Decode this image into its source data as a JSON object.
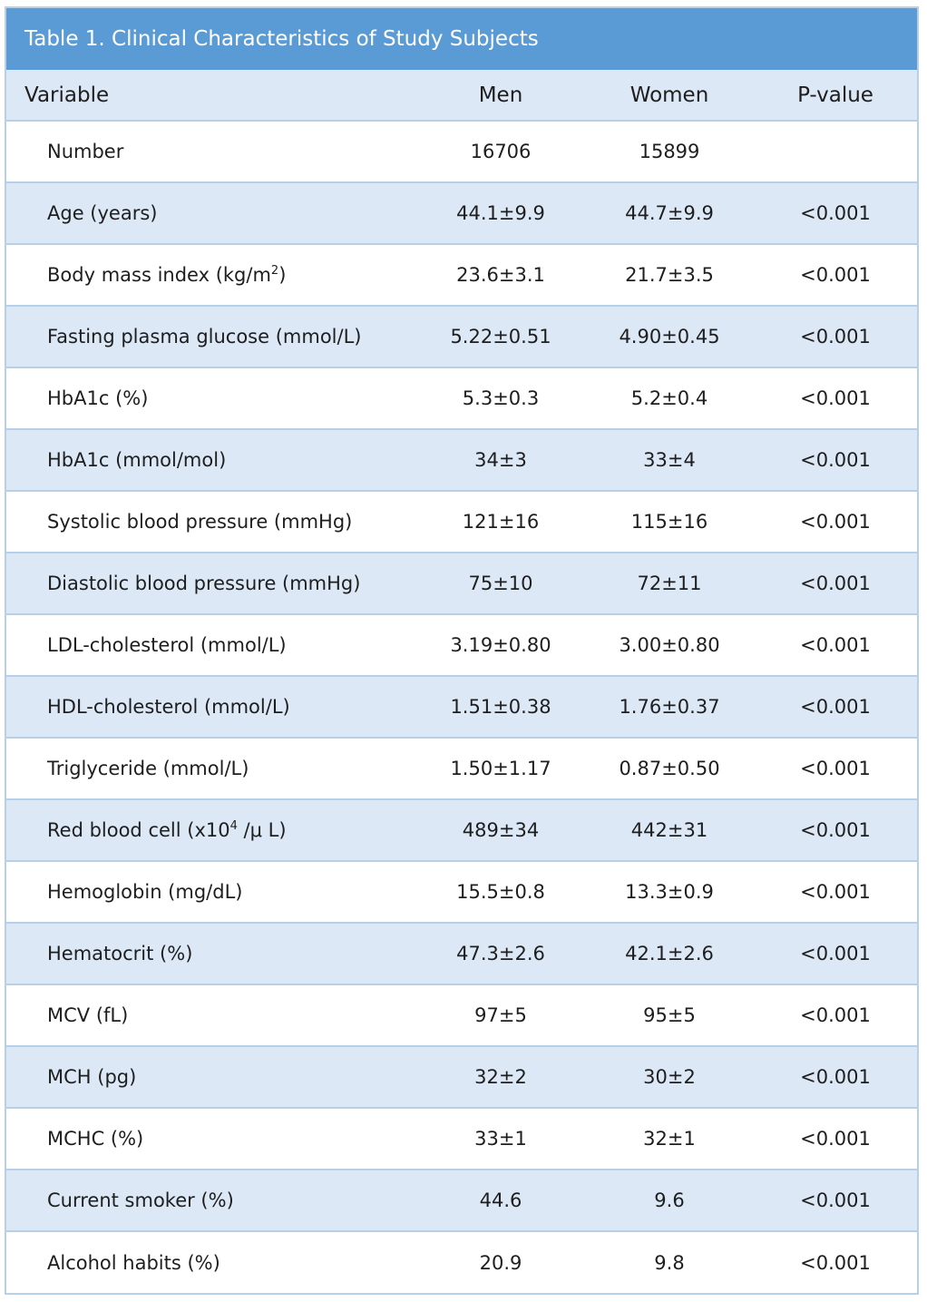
{
  "title": "Table 1. Clinical Characteristics of Study Subjects",
  "headers": {
    "variable": "Variable",
    "men": "Men",
    "women": "Women",
    "p_value": "P-value"
  },
  "rows": [
    {
      "label": "Number",
      "men": "16706",
      "women": "15899",
      "p": ""
    },
    {
      "label": "Age (years)",
      "men": "44.1±9.9",
      "women": "44.7±9.9",
      "p": "<0.001"
    },
    {
      "label": "Body mass index (kg/m",
      "label_sup": "2",
      "label_suffix": ")",
      "men": "23.6±3.1",
      "women": "21.7±3.5",
      "p": "<0.001"
    },
    {
      "label": "Fasting plasma glucose (mmol/L)",
      "men": "5.22±0.51",
      "women": "4.90±0.45",
      "p": "<0.001"
    },
    {
      "label": "HbA1c (%)",
      "men": "5.3±0.3",
      "women": "5.2±0.4",
      "p": "<0.001"
    },
    {
      "label": "HbA1c (mmol/mol)",
      "men": "34±3",
      "women": "33±4",
      "p": "<0.001"
    },
    {
      "label": "Systolic blood pressure (mmHg)",
      "men": "121±16",
      "women": "115±16",
      "p": "<0.001"
    },
    {
      "label": "Diastolic blood pressure (mmHg)",
      "men": "75±10",
      "women": "72±11",
      "p": "<0.001"
    },
    {
      "label": "LDL-cholesterol (mmol/L)",
      "men": "3.19±0.80",
      "women": "3.00±0.80",
      "p": "<0.001"
    },
    {
      "label": "HDL-cholesterol (mmol/L)",
      "men": "1.51±0.38",
      "women": "1.76±0.37",
      "p": "<0.001"
    },
    {
      "label": "Triglyceride (mmol/L)",
      "men": "1.50±1.17",
      "women": "0.87±0.50",
      "p": "<0.001"
    },
    {
      "label": "Red blood cell (x10",
      "label_sup": "4",
      "label_suffix": " /μ L)",
      "men": "489±34",
      "women": "442±31",
      "p": "<0.001"
    },
    {
      "label": "Hemoglobin (mg/dL)",
      "men": "15.5±0.8",
      "women": "13.3±0.9",
      "p": "<0.001"
    },
    {
      "label": "Hematocrit (%)",
      "men": "47.3±2.6",
      "women": "42.1±2.6",
      "p": "<0.001"
    },
    {
      "label": "MCV (fL)",
      "men": "97±5",
      "women": "95±5",
      "p": "<0.001"
    },
    {
      "label": "MCH (pg)",
      "men": "32±2",
      "women": "30±2",
      "p": "<0.001"
    },
    {
      "label": "MCHC (%)",
      "men": "33±1",
      "women": "32±1",
      "p": "<0.001"
    },
    {
      "label": "Current smoker (%)",
      "men": "44.6",
      "women": "9.6",
      "p": "<0.001"
    },
    {
      "label": "Alcohol habits (%)",
      "men": "20.9",
      "women": "9.8",
      "p": "<0.001"
    }
  ]
}
